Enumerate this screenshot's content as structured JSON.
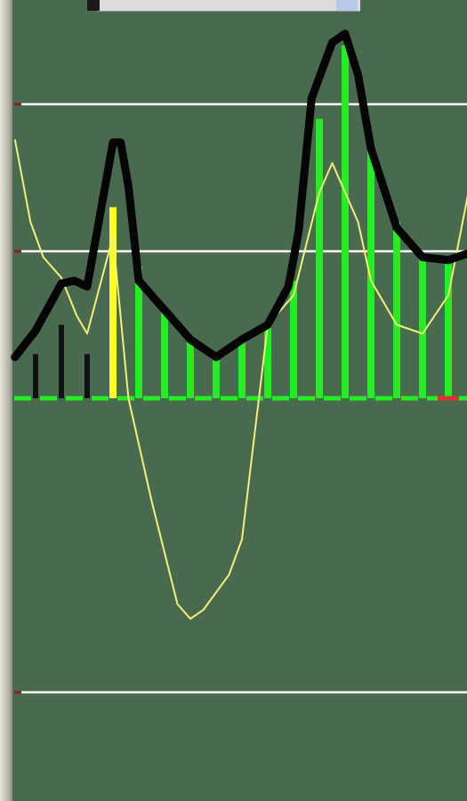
{
  "chart_data": {
    "type": "bar+line",
    "title": "",
    "xlabel": "",
    "ylabel": "",
    "grid": true,
    "ylim": [
      -2,
      2
    ],
    "gridlines": [
      1.5,
      1.0,
      -0.5,
      -1.0
    ],
    "zero_line": 0.5,
    "bars": {
      "x": [
        0,
        1,
        2,
        3,
        4,
        5,
        6,
        7,
        8,
        9,
        10,
        11,
        12,
        13,
        14,
        15,
        16
      ],
      "values": [
        0.65,
        0.75,
        0.65,
        1.15,
        0.95,
        0.8,
        0.7,
        0.65,
        0.7,
        0.75,
        0.9,
        1.45,
        1.7,
        1.35,
        1.1,
        0.98,
        0.98
      ],
      "colors": [
        "#111111",
        "#111111",
        "#111111",
        "#ffff22",
        "#22ee22",
        "#22ee22",
        "#22ee22",
        "#22ee22",
        "#22ee22",
        "#22ee22",
        "#22ee22",
        "#22ee22",
        "#22ee22",
        "#22ee22",
        "#22ee22",
        "#22ee22",
        "#22ee22"
      ]
    },
    "black_line": {
      "x": [
        -0.8,
        0,
        1,
        1.5,
        2,
        3,
        3.3,
        3.6,
        4,
        5,
        6,
        7,
        8,
        9,
        9.8,
        10.2,
        10.7,
        11.5,
        12,
        12.5,
        13,
        14,
        15,
        16,
        17
      ],
      "values": [
        0.64,
        0.73,
        0.89,
        0.9,
        0.88,
        1.37,
        1.37,
        1.22,
        0.9,
        0.8,
        0.7,
        0.64,
        0.7,
        0.75,
        0.88,
        1.07,
        1.52,
        1.71,
        1.74,
        1.6,
        1.35,
        1.08,
        0.98,
        0.97,
        1.0
      ]
    },
    "yellow_line": {
      "x": [
        -0.8,
        -0.2,
        0.3,
        1,
        1.6,
        2,
        3,
        3.6,
        4.5,
        5.5,
        6,
        6.5,
        7.5,
        8,
        9,
        10,
        11,
        11.5,
        12.5,
        13,
        14,
        15,
        16,
        17
      ],
      "values": [
        1.38,
        1.1,
        0.98,
        0.91,
        0.78,
        0.72,
        1.05,
        0.5,
        0.15,
        -0.2,
        -0.25,
        -0.22,
        -0.1,
        0.02,
        0.75,
        0.85,
        1.2,
        1.3,
        1.1,
        0.9,
        0.75,
        0.72,
        0.85,
        1.3
      ]
    },
    "red_marker": {
      "x": 16,
      "value": 0.5
    },
    "left_tick_values": [
      1.5,
      1.0,
      -0.5
    ]
  }
}
